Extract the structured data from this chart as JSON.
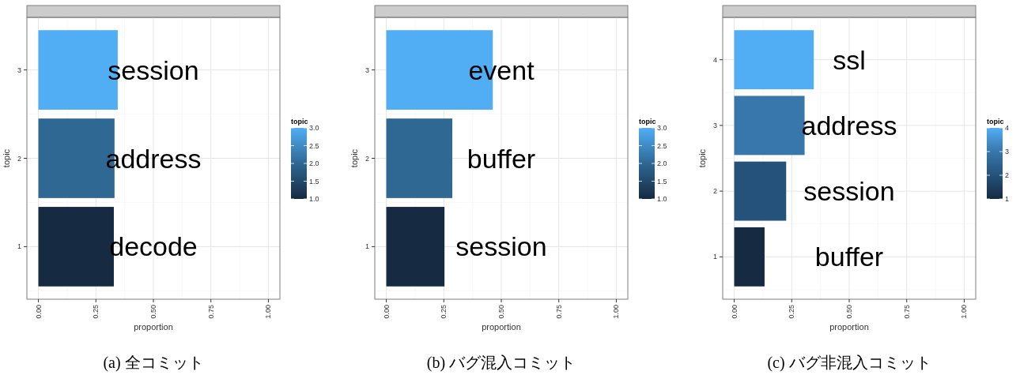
{
  "chart_data": [
    {
      "type": "bar",
      "orientation": "horizontal",
      "title": "(a) 全コミット",
      "xlabel": "proportion",
      "ylabel": "topic",
      "clabel": "topic",
      "categories": [
        "3",
        "2",
        "1"
      ],
      "values": [
        0.345,
        0.331,
        0.328
      ],
      "colors": [
        "#51aef5",
        "#2e6893",
        "#162a41"
      ],
      "xlim": [
        -0.05,
        1.05
      ],
      "xticks": [
        {
          "value": 0,
          "label": "0.00"
        },
        {
          "value": 0.25,
          "label": "0.25"
        },
        {
          "value": 0.5,
          "label": "0.50"
        },
        {
          "value": 0.75,
          "label": "0.75"
        },
        {
          "value": 1,
          "label": "1.00"
        }
      ],
      "clim": [
        1,
        3
      ],
      "cticks": [
        {
          "value": 1,
          "label": "1.0"
        },
        {
          "value": 1.5,
          "label": "1.5"
        },
        {
          "value": 2,
          "label": "2.0"
        },
        {
          "value": 2.5,
          "label": "2.5"
        },
        {
          "value": 3,
          "label": "3.0"
        }
      ],
      "grid": true,
      "value_labels": [
        "session",
        "address",
        "decode"
      ]
    },
    {
      "type": "bar",
      "orientation": "horizontal",
      "title": "(b) バグ混入コミット",
      "xlabel": "proportion",
      "ylabel": "topic",
      "clabel": "topic",
      "categories": [
        "3",
        "2",
        "1"
      ],
      "values": [
        0.463,
        0.287,
        0.253
      ],
      "colors": [
        "#51aef5",
        "#2e6893",
        "#162a41"
      ],
      "xlim": [
        -0.05,
        1.05
      ],
      "xticks": [
        {
          "value": 0,
          "label": "0.00"
        },
        {
          "value": 0.25,
          "label": "0.25"
        },
        {
          "value": 0.5,
          "label": "0.50"
        },
        {
          "value": 0.75,
          "label": "0.75"
        },
        {
          "value": 1,
          "label": "1.00"
        }
      ],
      "clim": [
        1,
        3
      ],
      "cticks": [
        {
          "value": 1,
          "label": "1.0"
        },
        {
          "value": 1.5,
          "label": "1.5"
        },
        {
          "value": 2,
          "label": "2.0"
        },
        {
          "value": 2.5,
          "label": "2.5"
        },
        {
          "value": 3,
          "label": "3.0"
        }
      ],
      "grid": true,
      "value_labels": [
        "event",
        "buffer",
        "session"
      ]
    },
    {
      "type": "bar",
      "orientation": "horizontal",
      "title": "(c) バグ非混入コミット",
      "xlabel": "proportion",
      "ylabel": "topic",
      "clabel": "topic",
      "categories": [
        "4",
        "3",
        "2",
        "1"
      ],
      "values": [
        0.346,
        0.306,
        0.226,
        0.132
      ],
      "colors": [
        "#51aef5",
        "#3777ab",
        "#25527a",
        "#162a41"
      ],
      "xlim": [
        -0.05,
        1.05
      ],
      "xticks": [
        {
          "value": 0,
          "label": "0.00"
        },
        {
          "value": 0.25,
          "label": "0.25"
        },
        {
          "value": 0.5,
          "label": "0.50"
        },
        {
          "value": 0.75,
          "label": "0.75"
        },
        {
          "value": 1,
          "label": "1.00"
        }
      ],
      "clim": [
        1,
        4
      ],
      "cticks": [
        1,
        2,
        3,
        4
      ],
      "grid": true,
      "value_labels": [
        "ssl",
        "address",
        "session",
        "buffer"
      ]
    }
  ]
}
